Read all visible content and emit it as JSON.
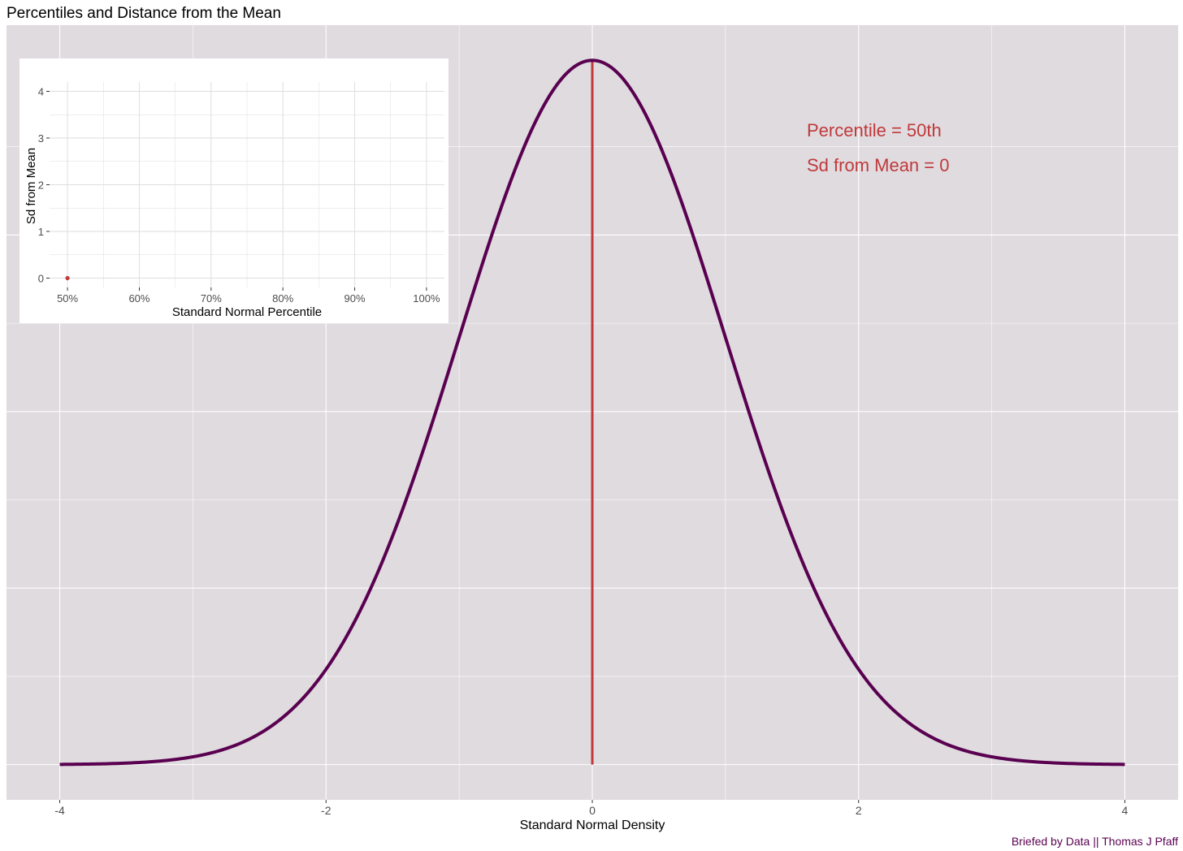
{
  "title": "Percentiles and Distance from the Mean",
  "caption": "Briefed by Data || Thomas J Pfaff",
  "annotations": {
    "percentile": "Percentile = 50th",
    "sd": "Sd from Mean = 0"
  },
  "colors": {
    "panel_bg": "#dfdbdf",
    "grid": "#ffffff",
    "curve": "#5a0050",
    "marker": "#c0393b",
    "annotation": "#c0393b",
    "caption": "#5a0050"
  },
  "chart_data": [
    {
      "type": "line",
      "title": "Percentiles and Distance from the Mean",
      "xlabel": "Standard Normal Density",
      "ylabel": "",
      "function": "standard normal density",
      "xlim": [
        -4,
        4
      ],
      "ylim": [
        0,
        0.3989
      ],
      "x_ticks": [
        -4,
        -2,
        0,
        2,
        4
      ],
      "x_tick_labels": [
        "-4",
        "-2",
        "0",
        "2",
        "4"
      ],
      "y_ticks_labeled": false,
      "grid": true,
      "vertical_line": {
        "x": 0,
        "y_from": 0,
        "y_to": 0.3989
      }
    },
    {
      "type": "scatter",
      "xlabel": "Standard Normal Percentile",
      "ylabel": "Sd from Mean",
      "xlim": [
        0.5,
        1.0
      ],
      "ylim": [
        0,
        4
      ],
      "x_ticks": [
        0.5,
        0.6,
        0.7,
        0.8,
        0.9,
        1.0
      ],
      "x_tick_labels": [
        "50%",
        "60%",
        "70%",
        "80%",
        "90%",
        "100%"
      ],
      "y_ticks": [
        0,
        1,
        2,
        3,
        4
      ],
      "y_tick_labels": [
        "0",
        "1",
        "2",
        "3",
        "4"
      ],
      "points": [
        {
          "x": 0.5,
          "y": 0
        }
      ],
      "grid": true,
      "legend": "none"
    }
  ]
}
